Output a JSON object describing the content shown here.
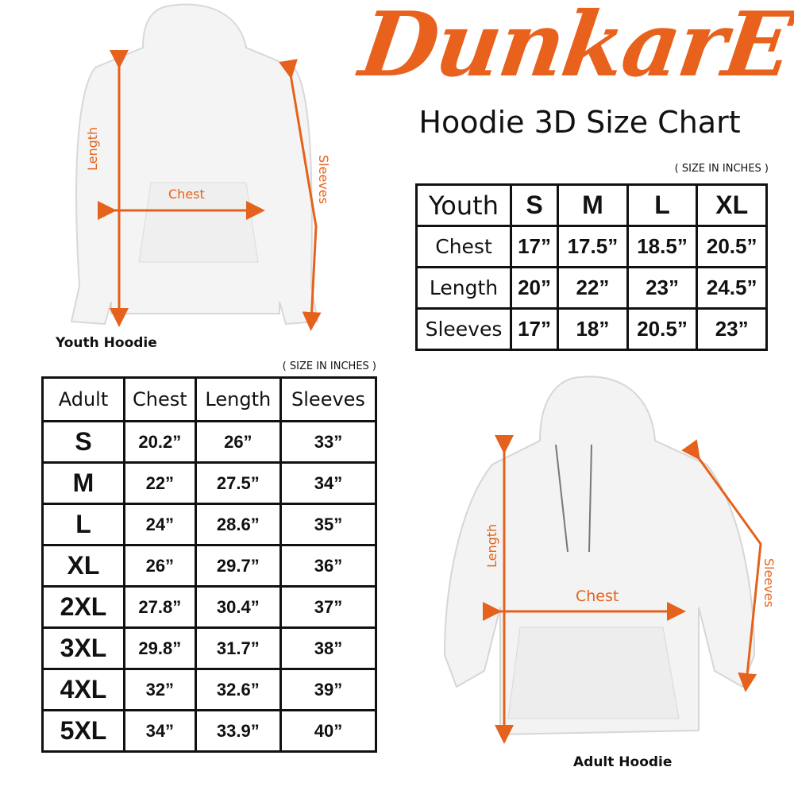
{
  "brand": {
    "logo_text": "DunkarE",
    "color": "#e8621e"
  },
  "title": "Hoodie 3D Size Chart",
  "youth": {
    "unit_note": "( SIZE IN INCHES )",
    "header": [
      "Youth",
      "S",
      "M",
      "L",
      "XL"
    ],
    "rows": [
      [
        "Chest",
        "17”",
        "17.5”",
        "18.5”",
        "20.5”"
      ],
      [
        "Length",
        "20”",
        "22”",
        "23”",
        "24.5”"
      ],
      [
        "Sleeves",
        "17”",
        "18”",
        "20.5”",
        "23”"
      ]
    ],
    "image": {
      "caption": "Youth Hoodie",
      "labels": {
        "length": "Length",
        "chest": "Chest",
        "sleeves": "Sleeves"
      }
    }
  },
  "adult": {
    "unit_note": "( SIZE IN INCHES )",
    "header": [
      "Adult",
      "Chest",
      "Length",
      "Sleeves"
    ],
    "rows": [
      [
        "S",
        "20.2”",
        "26”",
        "33”"
      ],
      [
        "M",
        "22”",
        "27.5”",
        "34”"
      ],
      [
        "L",
        "24”",
        "28.6”",
        "35”"
      ],
      [
        "XL",
        "26”",
        "29.7”",
        "36”"
      ],
      [
        "2XL",
        "27.8”",
        "30.4”",
        "37”"
      ],
      [
        "3XL",
        "29.8”",
        "31.7”",
        "38”"
      ],
      [
        "4XL",
        "32”",
        "32.6”",
        "39”"
      ],
      [
        "5XL",
        "34”",
        "33.9”",
        "40”"
      ]
    ],
    "image": {
      "caption": "Adult Hoodie",
      "labels": {
        "length": "Length",
        "chest": "Chest",
        "sleeves": "Sleeves"
      }
    }
  },
  "accent": "#e5621c"
}
